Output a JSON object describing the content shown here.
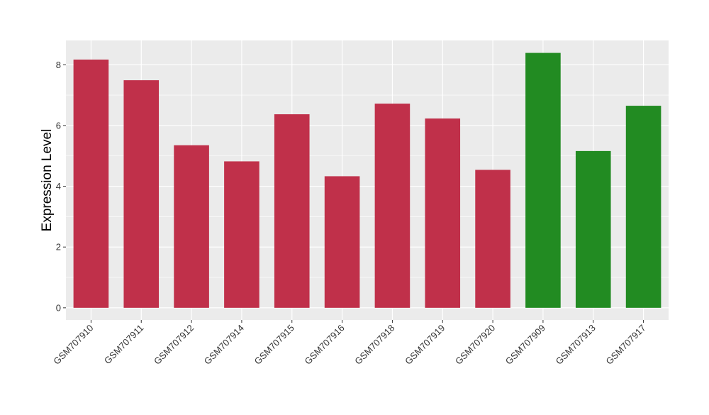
{
  "chart_data": {
    "type": "bar",
    "title": "",
    "xlabel": "",
    "ylabel": "Expression Level",
    "ylim": [
      -0.4,
      8.8
    ],
    "yticks": [
      0,
      2,
      4,
      6,
      8
    ],
    "grid": true,
    "legend": "none",
    "categories": [
      "GSM707910",
      "GSM707911",
      "GSM707912",
      "GSM707914",
      "GSM707915",
      "GSM707916",
      "GSM707918",
      "GSM707919",
      "GSM707920",
      "GSM707909",
      "GSM707913",
      "GSM707917"
    ],
    "values": [
      8.17,
      7.49,
      5.35,
      4.82,
      6.37,
      4.33,
      6.72,
      6.23,
      4.54,
      8.39,
      5.16,
      6.65
    ],
    "bar_colors": [
      "#c0304a",
      "#c0304a",
      "#c0304a",
      "#c0304a",
      "#c0304a",
      "#c0304a",
      "#c0304a",
      "#c0304a",
      "#c0304a",
      "#228b22",
      "#228b22",
      "#228b22"
    ],
    "panel_background": "#ebebeb",
    "gridline_color": "#ffffff"
  }
}
